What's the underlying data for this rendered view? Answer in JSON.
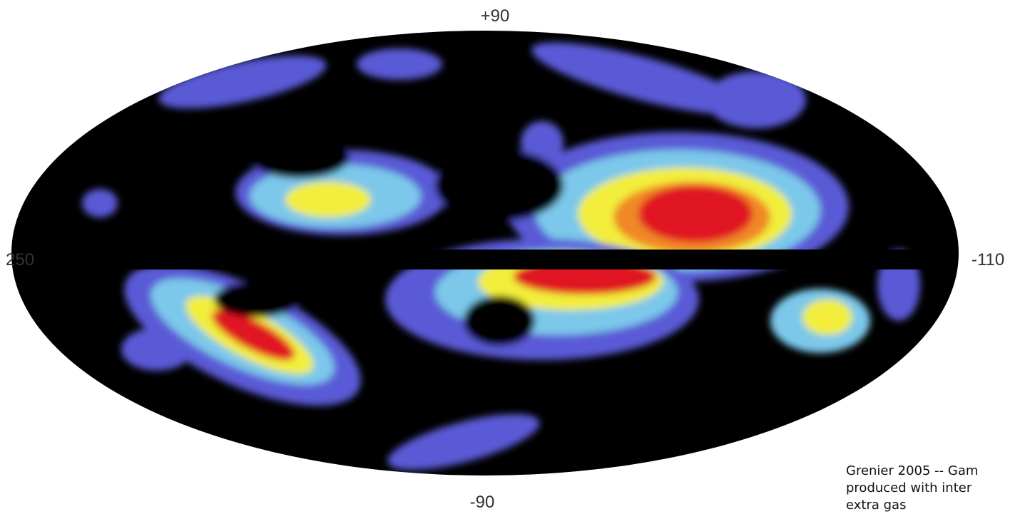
{
  "map": {
    "labels": {
      "top": "+90",
      "bottom": "-90",
      "left": "250",
      "right": "-110"
    },
    "caption": [
      "Grenier 2005 -- Gam",
      "produced with inter",
      "extra gas"
    ]
  }
}
